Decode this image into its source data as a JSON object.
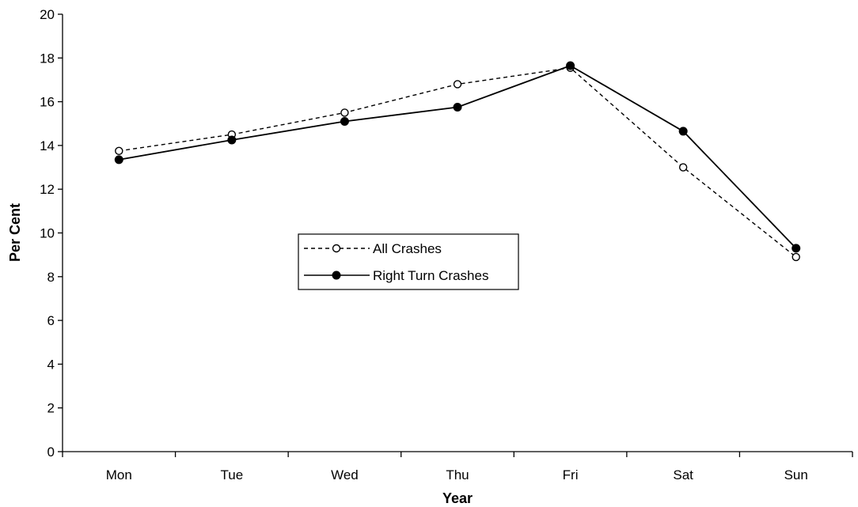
{
  "chart_data": {
    "type": "line",
    "categories": [
      "Mon",
      "Tue",
      "Wed",
      "Thu",
      "Fri",
      "Sat",
      "Sun"
    ],
    "series": [
      {
        "name": "All Crashes",
        "values": [
          13.75,
          14.5,
          15.5,
          16.8,
          17.55,
          13.0,
          8.9
        ],
        "line_style": "dashed",
        "marker": "open-circle",
        "color": "#000000"
      },
      {
        "name": "Right Turn Crashes",
        "values": [
          13.35,
          14.25,
          15.1,
          15.75,
          17.65,
          14.65,
          9.3
        ],
        "line_style": "solid",
        "marker": "filled-circle",
        "color": "#000000"
      }
    ],
    "title": "",
    "xlabel": "Year",
    "ylabel": "Per Cent",
    "ylim": [
      0,
      20
    ],
    "yticks": [
      0,
      2,
      4,
      6,
      8,
      10,
      12,
      14,
      16,
      18,
      20
    ],
    "ytick_labels": [
      "0",
      "2",
      "4",
      "6",
      "8",
      "10",
      "12",
      "14",
      "16",
      "18",
      "20"
    ],
    "grid": false,
    "legend_position": "center"
  }
}
